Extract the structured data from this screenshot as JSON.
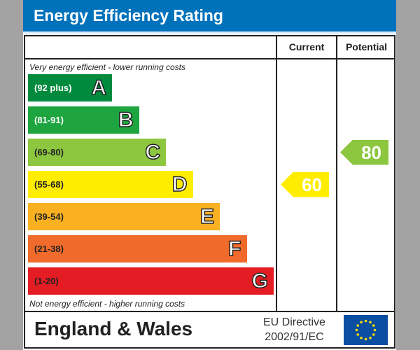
{
  "chart_data": {
    "type": "bar",
    "title": "Energy Efficiency Rating",
    "columns": [
      "Current",
      "Potential"
    ],
    "top_note": "Very energy efficient - lower running costs",
    "bottom_note": "Not energy efficient - higher running costs",
    "bands": [
      {
        "letter": "A",
        "range": "(92 plus)",
        "color": "#008a3e",
        "text_color": "#ffffff"
      },
      {
        "letter": "B",
        "range": "(81-91)",
        "color": "#1fa540",
        "text_color": "#ffffff"
      },
      {
        "letter": "C",
        "range": "(69-80)",
        "color": "#8dc63f",
        "text_color": "#222222"
      },
      {
        "letter": "D",
        "range": "(55-68)",
        "color": "#ffed00",
        "text_color": "#222222"
      },
      {
        "letter": "E",
        "range": "(39-54)",
        "color": "#f9b121",
        "text_color": "#222222"
      },
      {
        "letter": "F",
        "range": "(21-38)",
        "color": "#ef6a2b",
        "text_color": "#222222"
      },
      {
        "letter": "G",
        "range": "(1-20)",
        "color": "#e31d23",
        "text_color": "#222222"
      }
    ],
    "current": {
      "value": 60,
      "band": "D",
      "color": "#ffed00"
    },
    "potential": {
      "value": 80,
      "band": "C",
      "color": "#8dc63f"
    }
  },
  "footer": {
    "region": "England & Wales",
    "directive_line1": "EU Directive",
    "directive_line2": "2002/91/EC",
    "flag_icon": "eu-flag-icon"
  },
  "colors": {
    "header": "#0072bb",
    "background": "#a3a3a3"
  }
}
